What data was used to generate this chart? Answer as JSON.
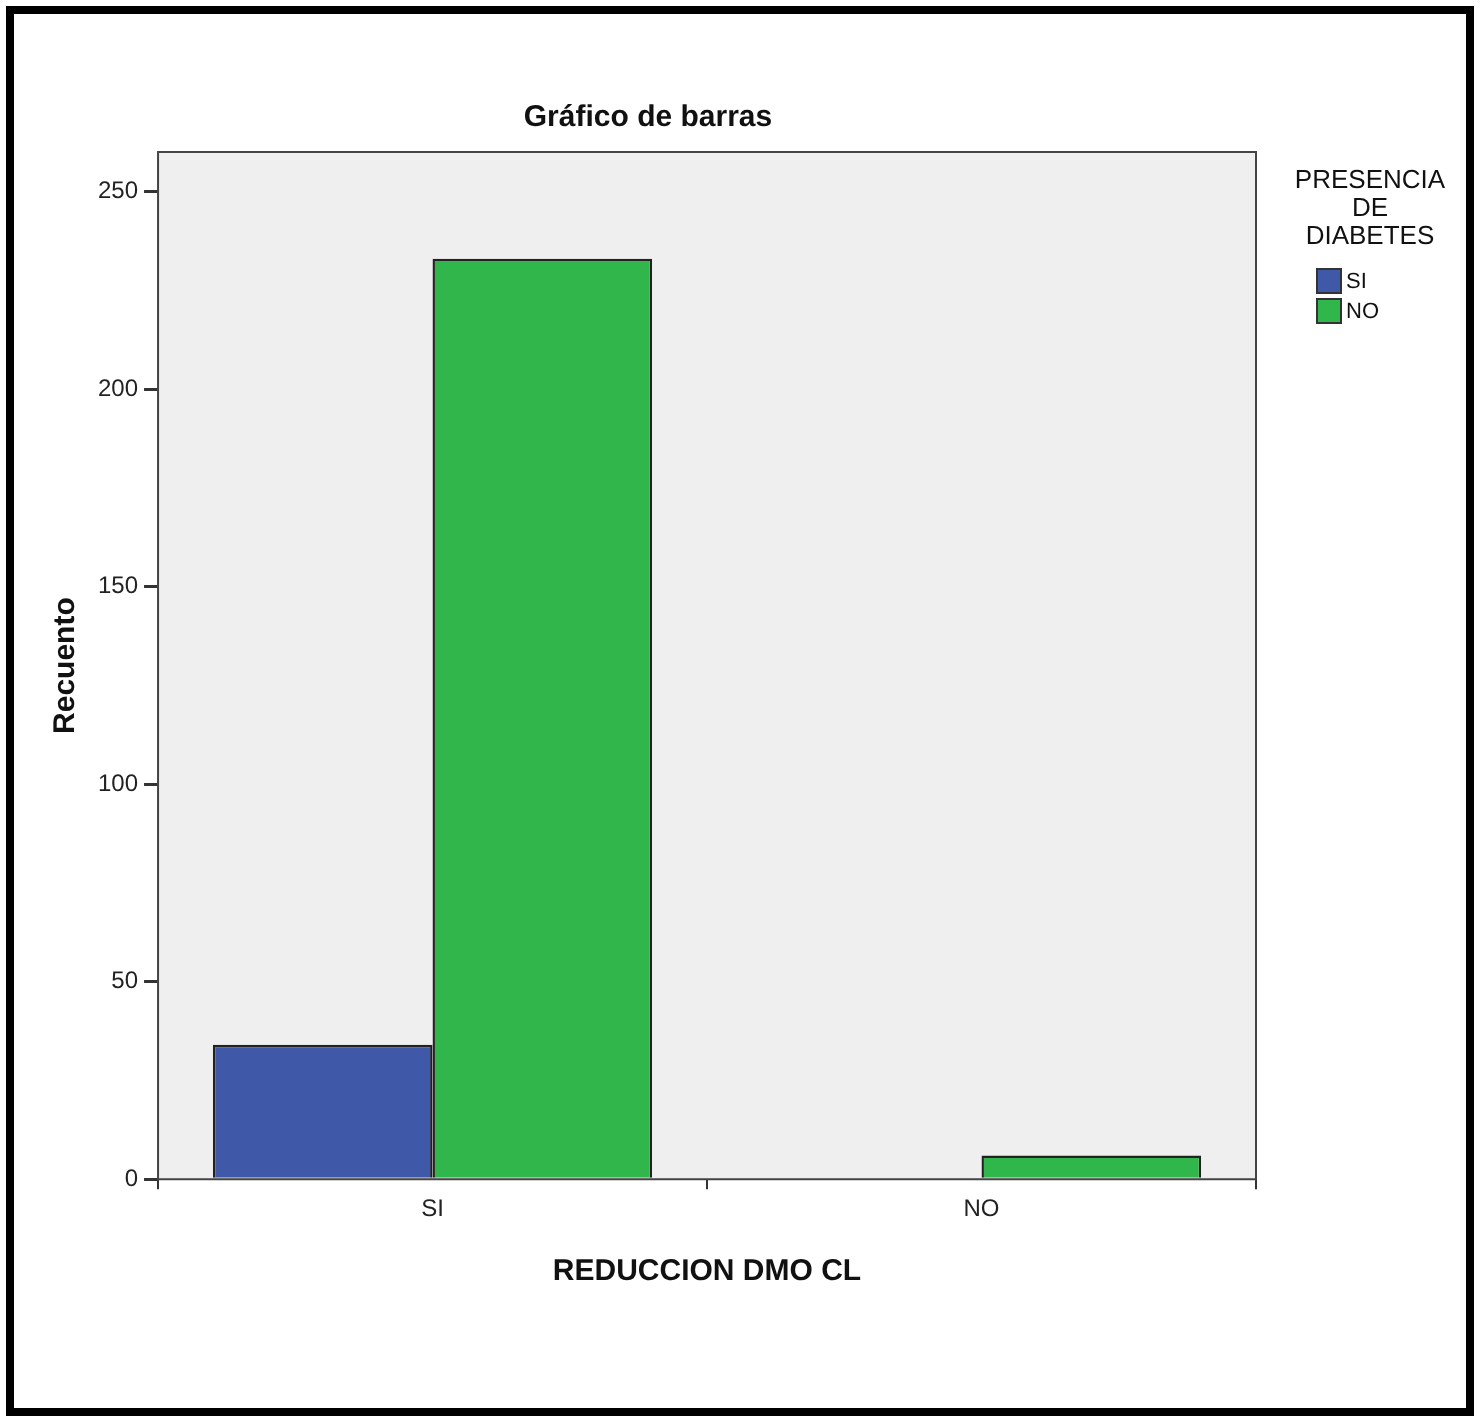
{
  "chart_data": {
    "type": "bar",
    "title": "Gráfico de barras",
    "xlabel": "REDUCCION DMO CL",
    "ylabel": "Recuento",
    "legend_title": "PRESENCIA DE DIABETES",
    "categories": [
      "SI",
      "NO"
    ],
    "series": [
      {
        "name": "SI",
        "color": "#3f58a8",
        "values": [
          34,
          0
        ]
      },
      {
        "name": "NO",
        "color": "#31b64b",
        "values": [
          233,
          6
        ]
      }
    ],
    "ylim": [
      0,
      260
    ],
    "yticks": [
      0,
      50,
      100,
      150,
      200,
      250
    ],
    "grid": false,
    "legend": "right"
  }
}
